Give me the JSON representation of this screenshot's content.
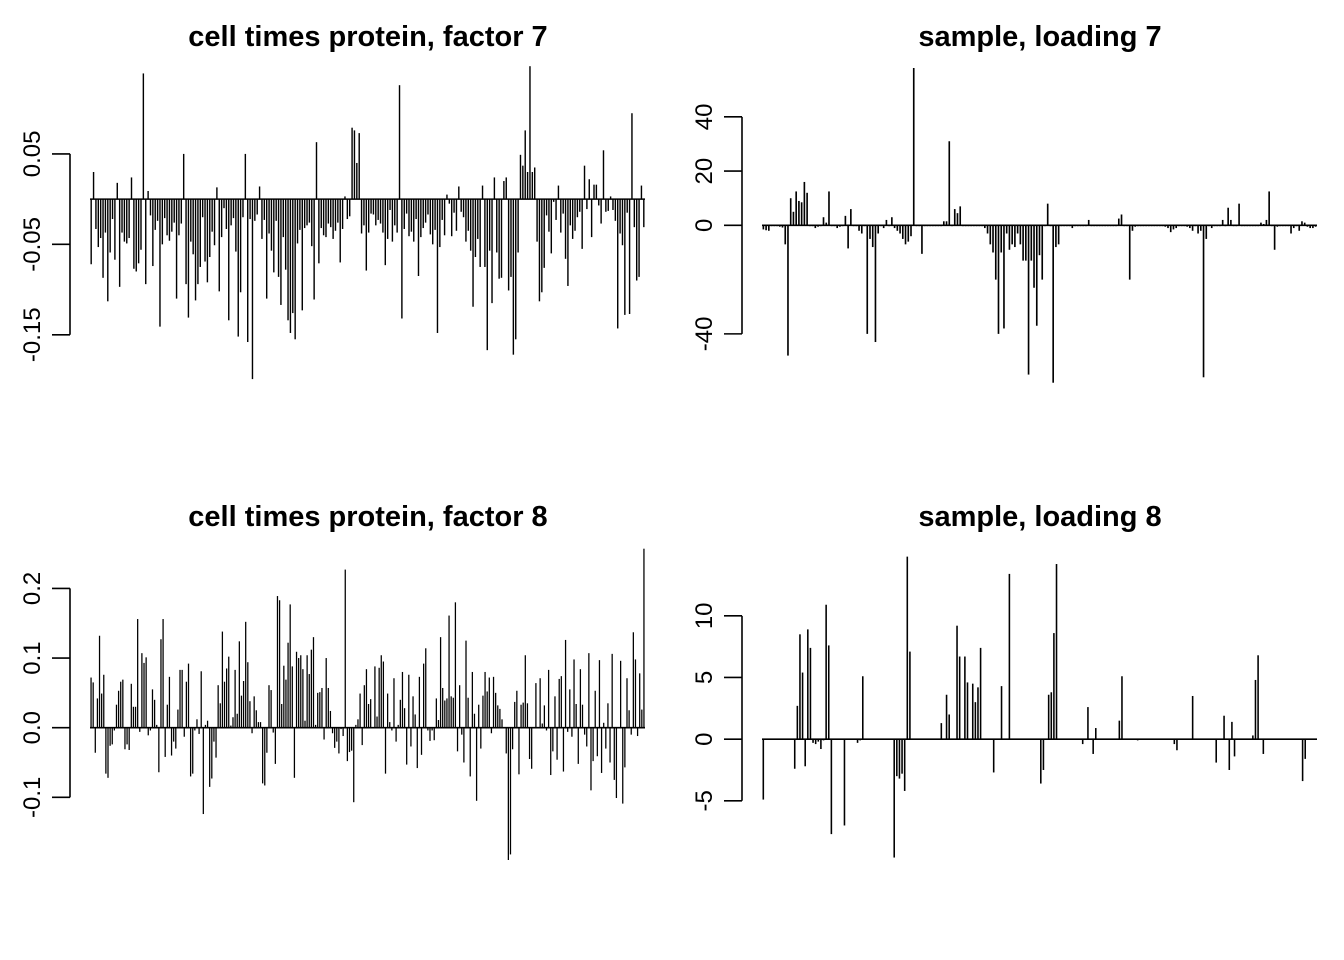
{
  "chart_data": [
    {
      "id": "p1",
      "type": "bar",
      "title": "cell times protein, factor 7",
      "xlabel": "",
      "ylabel": "",
      "ylim": [
        -0.2,
        0.145
      ],
      "yticks": [
        0.05,
        -0.05,
        -0.15
      ],
      "ytick_labels": [
        "0.05",
        "-0.05",
        "-0.15"
      ],
      "grid": false,
      "legend": "none",
      "color": "#000000",
      "values": [
        -0.072,
        0.03,
        -0.033,
        -0.053,
        -0.043,
        -0.087,
        -0.037,
        -0.113,
        -0.059,
        -0.022,
        -0.067,
        0.018,
        -0.097,
        -0.037,
        -0.047,
        -0.049,
        -0.043,
        0.024,
        -0.077,
        -0.08,
        -0.071,
        -0.056,
        0.139,
        -0.094,
        0.009,
        -0.018,
        -0.074,
        -0.034,
        -0.024,
        -0.141,
        -0.05,
        -0.021,
        -0.04,
        -0.046,
        -0.036,
        -0.026,
        -0.11,
        -0.04,
        -0.027,
        0.05,
        -0.094,
        -0.131,
        -0.047,
        -0.061,
        -0.112,
        -0.094,
        -0.075,
        -0.02,
        -0.069,
        -0.092,
        -0.064,
        -0.036,
        -0.051,
        0.013,
        -0.102,
        -0.042,
        -0.01,
        -0.033,
        -0.134,
        -0.029,
        -0.021,
        -0.058,
        -0.152,
        -0.103,
        -0.02,
        0.05,
        -0.158,
        -0.022,
        -0.199,
        -0.024,
        -0.017,
        0.014,
        -0.044,
        -0.023,
        -0.11,
        -0.038,
        -0.057,
        -0.081,
        -0.024,
        -0.086,
        -0.117,
        -0.042,
        -0.078,
        -0.134,
        -0.148,
        -0.126,
        -0.155,
        -0.049,
        -0.034,
        -0.123,
        -0.032,
        -0.029,
        -0.026,
        -0.052,
        -0.111,
        0.063,
        -0.071,
        -0.032,
        -0.04,
        -0.042,
        -0.027,
        -0.031,
        -0.044,
        -0.035,
        -0.026,
        -0.07,
        -0.033,
        0.003,
        -0.022,
        -0.019,
        0.079,
        0.076,
        0.04,
        0.073,
        -0.038,
        -0.029,
        -0.079,
        -0.037,
        -0.016,
        -0.017,
        -0.029,
        -0.023,
        -0.027,
        -0.037,
        -0.073,
        -0.044,
        -0.012,
        -0.047,
        -0.029,
        -0.037,
        0.126,
        -0.132,
        -0.033,
        -0.016,
        -0.041,
        -0.036,
        -0.047,
        -0.022,
        -0.085,
        -0.042,
        -0.032,
        -0.026,
        -0.017,
        -0.039,
        -0.05,
        -0.034,
        -0.148,
        -0.053,
        -0.023,
        -0.04,
        0.005,
        -0.005,
        -0.041,
        -0.015,
        -0.035,
        0.014,
        -0.014,
        -0.02,
        -0.047,
        -0.035,
        -0.057,
        -0.119,
        -0.064,
        -0.044,
        -0.075,
        0.015,
        -0.075,
        -0.167,
        -0.057,
        -0.115,
        0.024,
        -0.059,
        -0.088,
        -0.087,
        0.02,
        0.024,
        -0.101,
        -0.086,
        -0.172,
        -0.155,
        -0.059,
        0.049,
        0.037,
        0.076,
        0.03,
        0.147,
        0.03,
        0.035,
        -0.047,
        -0.113,
        -0.103,
        -0.076,
        -0.018,
        -0.036,
        -0.06,
        -0.003,
        -0.023,
        0.015,
        -0.037,
        -0.016,
        -0.066,
        -0.096,
        -0.029,
        -0.044,
        -0.035,
        -0.02,
        -0.014,
        -0.055,
        0.037,
        -0.011,
        0.022,
        -0.042,
        0.016,
        0.016,
        -0.007,
        -0.027,
        0.054,
        -0.014,
        -0.013,
        0.003,
        -0.012,
        -0.024,
        -0.143,
        -0.038,
        -0.051,
        -0.128,
        -0.015,
        -0.127,
        0.095,
        -0.031,
        -0.09,
        -0.086,
        0.015,
        -0.031
      ]
    },
    {
      "id": "p2",
      "type": "bar",
      "title": "sample, loading 7",
      "xlabel": "",
      "ylabel": "",
      "ylim": [
        -57,
        58
      ],
      "yticks": [
        40,
        20,
        0,
        -40
      ],
      "ytick_labels": [
        "40",
        "20",
        "0",
        "-40"
      ],
      "grid": false,
      "legend": "none",
      "color": "#000000",
      "values": [
        -1.5,
        -1.8,
        -2.0,
        0.0,
        0.0,
        0.0,
        -0.5,
        -0.8,
        -7.0,
        -48.0,
        10.0,
        5.0,
        12.5,
        9.0,
        8.5,
        16.0,
        12.0,
        0.0,
        0.0,
        -1.0,
        -0.5,
        0.0,
        3.0,
        1.0,
        12.5,
        0.0,
        0.0,
        -1.0,
        -0.5,
        0.0,
        3.5,
        -8.5,
        6.0,
        0.0,
        0.0,
        -2.0,
        -3.0,
        0.0,
        -40.0,
        -5.0,
        -8.0,
        -43.0,
        -3.0,
        0.0,
        -1.0,
        2.0,
        0.0,
        3.0,
        -1.0,
        -2.0,
        -3.0,
        -5.0,
        -7.0,
        -6.0,
        -4.0,
        58.0,
        0.0,
        0.0,
        -10.5,
        0.0,
        0.0,
        0.0,
        0.0,
        0.0,
        0.0,
        0.0,
        1.5,
        1.5,
        31.0,
        0.0,
        6.0,
        4.5,
        7.0,
        0.0,
        0.0,
        0.0,
        0.0,
        0.0,
        0.0,
        0.0,
        0.0,
        -1.0,
        -3.0,
        -7.0,
        -10.0,
        -20.0,
        -40.0,
        -10.0,
        -38.0,
        -3.0,
        -9.0,
        -7.0,
        -8.0,
        -3.0,
        -7.0,
        -13.0,
        -13.0,
        -55.0,
        -13.0,
        -23.0,
        -37.0,
        -11.0,
        -20.0,
        0.0,
        8.0,
        0.0,
        -58.0,
        -8.0,
        -7.0,
        0.0,
        0.0,
        0.0,
        0.0,
        -1.0,
        0.0,
        0.0,
        0.0,
        0.0,
        0.0,
        2.0,
        0.0,
        0.0,
        0.0,
        0.0,
        0.0,
        0.0,
        0.0,
        0.0,
        0.0,
        0.0,
        2.5,
        4.0,
        0.0,
        0.0,
        -20.0,
        -2.0,
        -0.5,
        0.0,
        0.0,
        0.0,
        0.0,
        0.0,
        0.0,
        0.0,
        0.0,
        0.0,
        0.0,
        -0.5,
        -1.0,
        -2.5,
        -1.5,
        -1.0,
        0.0,
        0.0,
        0.0,
        -0.5,
        -1.0,
        -2.0,
        0.0,
        -3.0,
        -2.0,
        -56.0,
        -5.0,
        0.0,
        -1.0,
        0.0,
        0.0,
        0.0,
        2.0,
        0.0,
        6.5,
        2.0,
        0.0,
        0.0,
        8.0,
        0.0,
        0.0,
        0.0,
        0.0,
        0.0,
        0.0,
        0.0,
        1.0,
        0.5,
        2.0,
        12.5,
        0.0,
        -9.0,
        -0.5,
        0.0,
        0.0,
        0.0,
        0.0,
        -3.0,
        -1.0,
        0.0,
        -2.0,
        1.5,
        1.0,
        -0.5,
        -1.0,
        -1.0,
        -0.5
      ]
    },
    {
      "id": "p3",
      "type": "bar",
      "title": "cell times protein, factor 8",
      "xlabel": "",
      "ylabel": "",
      "ylim": [
        -0.19,
        0.258
      ],
      "yticks": [
        0.2,
        0.1,
        0.0,
        -0.1
      ],
      "ytick_labels": [
        "0.2",
        "0.1",
        "0.0",
        "-0.1"
      ],
      "grid": false,
      "legend": "none",
      "color": "#000000",
      "values": [
        0.072,
        0.065,
        -0.036,
        0.042,
        0.132,
        0.049,
        0.076,
        -0.066,
        -0.072,
        -0.026,
        -0.024,
        -0.004,
        0.033,
        0.053,
        0.066,
        0.069,
        -0.031,
        -0.024,
        -0.032,
        0.063,
        0.03,
        0.03,
        0.156,
        -0.006,
        0.107,
        0.093,
        0.101,
        -0.011,
        -0.004,
        0.055,
        0.04,
        0.004,
        -0.064,
        0.127,
        0.156,
        -0.042,
        0.033,
        0.073,
        -0.04,
        -0.02,
        -0.03,
        0.026,
        0.083,
        0.083,
        -0.013,
        0.066,
        0.092,
        -0.07,
        -0.066,
        -0.004,
        0.012,
        -0.009,
        0.081,
        -0.124,
        0.004,
        0.01,
        -0.085,
        -0.073,
        -0.02,
        -0.043,
        0.061,
        0.035,
        0.138,
        0.066,
        0.085,
        0.102,
        0.003,
        0.015,
        0.083,
        0.02,
        0.124,
        0.046,
        0.067,
        0.152,
        0.094,
        0.038,
        -0.008,
        0.045,
        0.025,
        0.008,
        0.008,
        -0.08,
        -0.083,
        -0.036,
        0.061,
        0.054,
        -0.007,
        -0.052,
        0.189,
        0.183,
        0.034,
        0.089,
        0.069,
        0.122,
        0.177,
        0.088,
        -0.072,
        0.109,
        0.1,
        0.104,
        0.084,
        0.01,
        0.104,
        0.077,
        0.112,
        0.13,
        0.004,
        0.05,
        0.051,
        0.057,
        -0.017,
        0.1,
        0.057,
        0.024,
        -0.008,
        -0.029,
        -0.02,
        -0.037,
        -0.002,
        -0.012,
        0.227,
        -0.048,
        -0.035,
        -0.033,
        -0.107,
        0.004,
        0.012,
        0.049,
        -0.025,
        0.061,
        0.084,
        0.034,
        0.041,
        0.0,
        0.088,
        0.016,
        0.086,
        0.104,
        0.095,
        -0.066,
        0.049,
        0.008,
        -0.004,
        0.071,
        -0.02,
        0.004,
        0.04,
        0.08,
        0.028,
        -0.053,
        0.076,
        -0.027,
        0.045,
        0.019,
        -0.058,
        0.073,
        -0.039,
        0.092,
        0.114,
        -0.004,
        -0.019,
        -0.004,
        -0.018,
        0.042,
        0.011,
        0.13,
        0.057,
        0.039,
        0.042,
        0.161,
        0.045,
        0.043,
        0.18,
        -0.034,
        0.061,
        -0.01,
        -0.05,
        0.125,
        0.043,
        -0.07,
        0.08,
        0.02,
        -0.105,
        0.033,
        -0.03,
        0.046,
        0.08,
        0.052,
        0.072,
        -0.008,
        0.073,
        0.05,
        0.032,
        0.027,
        0.012,
        -0.001,
        -0.037,
        -0.19,
        -0.182,
        -0.031,
        0.037,
        0.053,
        -0.067,
        0.033,
        0.036,
        0.104,
        0.035,
        -0.045,
        -0.059,
        -0.001,
        0.064,
        0.0,
        0.071,
        0.006,
        0.032,
        -0.004,
        0.083,
        -0.068,
        -0.034,
        0.045,
        -0.046,
        0.07,
        0.074,
        -0.063,
        0.126,
        -0.006,
        0.055,
        -0.013,
        0.098,
        0.034,
        -0.052,
        0.084,
        0.033,
        -0.01,
        -0.027,
        0.107,
        -0.09,
        -0.048,
        0.053,
        -0.041,
        0.097,
        -0.065,
        0.007,
        -0.03,
        0.035,
        -0.05,
        0.106,
        -0.075,
        -0.101,
        0.0,
        0.096,
        -0.109,
        -0.057,
        0.071,
        0.025,
        -0.01,
        0.137,
        0.098,
        -0.012,
        0.078,
        0.026,
        0.257
      ]
    },
    {
      "id": "p4",
      "type": "bar",
      "title": "sample, loading 8",
      "xlabel": "",
      "ylabel": "",
      "ylim": [
        -9.8,
        15.5
      ],
      "yticks": [
        10,
        5,
        0,
        -5
      ],
      "ytick_labels": [
        "10",
        "5",
        "0",
        "-5"
      ],
      "grid": false,
      "legend": "none",
      "color": "#000000",
      "values": [
        -4.9,
        0.0,
        0.0,
        0.0,
        0.0,
        0.0,
        0.0,
        0.0,
        0.0,
        0.0,
        0.0,
        0.0,
        -2.4,
        2.7,
        8.5,
        5.4,
        -2.2,
        8.9,
        7.4,
        -0.3,
        -0.4,
        -0.2,
        -0.8,
        -0.1,
        10.9,
        7.6,
        -7.7,
        0.0,
        0.0,
        0.0,
        0.0,
        -7.0,
        0.0,
        0.0,
        0.0,
        0.0,
        -0.3,
        -0.1,
        5.1,
        0.0,
        0.0,
        0.0,
        0.0,
        0.0,
        0.0,
        0.0,
        0.0,
        0.0,
        0.0,
        0.0,
        -9.6,
        -3.0,
        -3.2,
        -2.8,
        -4.2,
        14.8,
        7.1,
        0.0,
        0.0,
        0.0,
        0.0,
        0.0,
        0.0,
        0.0,
        0.0,
        0.0,
        0.0,
        0.0,
        1.3,
        0.0,
        3.6,
        2.0,
        0.0,
        0.0,
        9.2,
        6.7,
        0.0,
        6.7,
        4.6,
        0.0,
        4.5,
        3.0,
        4.2,
        7.4,
        0.0,
        0.0,
        0.0,
        0.0,
        -2.7,
        0.0,
        0.0,
        4.3,
        0.0,
        0.0,
        13.4,
        0.0,
        0.0,
        0.0,
        0.0,
        0.0,
        0.0,
        0.0,
        0.0,
        0.0,
        0.0,
        0.0,
        -3.6,
        -2.5,
        0.0,
        3.6,
        3.8,
        8.6,
        14.2,
        0.0,
        0.0,
        0.0,
        0.0,
        0.0,
        0.0,
        0.0,
        0.0,
        0.0,
        -0.4,
        0.0,
        2.6,
        0.0,
        -1.2,
        0.9,
        0.0,
        0.0,
        0.0,
        0.0,
        0.0,
        0.0,
        0.0,
        0.0,
        1.5,
        5.1,
        0.0,
        0.0,
        0.0,
        0.0,
        0.0,
        -0.1,
        0.0,
        0.0,
        0.0,
        0.0,
        0.0,
        0.0,
        0.0,
        0.0,
        0.0,
        0.0,
        0.0,
        0.0,
        0.0,
        -0.4,
        -0.9,
        0.0,
        0.0,
        0.0,
        0.0,
        0.0,
        3.5,
        0.0,
        0.0,
        0.0,
        0.0,
        0.0,
        0.0,
        0.0,
        0.0,
        -1.9,
        0.0,
        0.0,
        1.9,
        0.0,
        -2.5,
        1.4,
        -1.4,
        0.0,
        0.0,
        0.0,
        0.0,
        0.0,
        0.0,
        0.3,
        4.8,
        6.8,
        0.0,
        -1.2,
        0.0,
        0.0,
        0.0,
        0.0,
        0.0,
        0.0,
        0.0,
        0.0,
        0.0,
        0.0,
        0.0,
        0.0,
        0.0,
        0.0,
        -3.4,
        -1.6,
        0.0,
        0.0,
        0.0,
        0.0
      ]
    }
  ]
}
